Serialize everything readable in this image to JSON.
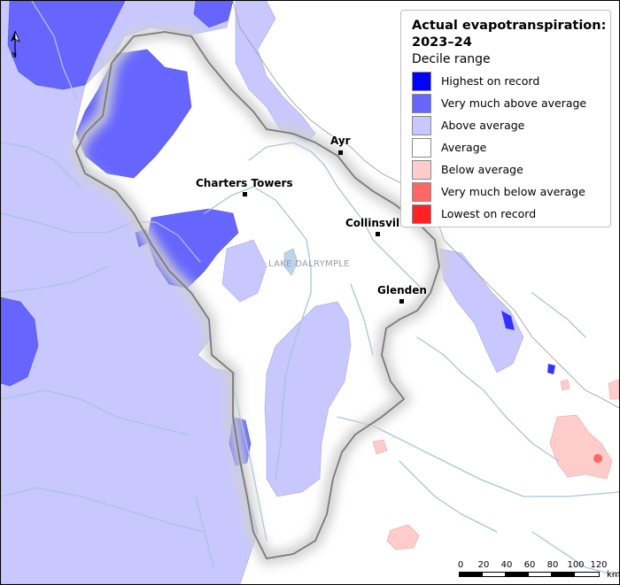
{
  "legend": {
    "title": "Actual evapotranspiration: 2023–24",
    "subtitle": "Decile range",
    "items": [
      {
        "label": "Highest on record",
        "color": "#0000ff"
      },
      {
        "label": "Very much above average",
        "color": "#6666ff"
      },
      {
        "label": "Above average",
        "color": "#c8c8ff"
      },
      {
        "label": "Average",
        "color": "#ffffff"
      },
      {
        "label": "Below average",
        "color": "#ffcccc"
      },
      {
        "label": "Very much below average",
        "color": "#ff6666"
      },
      {
        "label": "Lowest on record",
        "color": "#ff2222"
      }
    ]
  },
  "places": {
    "ayr": "Ayr",
    "charters_towers": "Charters Towers",
    "collinsville": "Collinsvil",
    "glenden": "Glenden",
    "lake": "LAKE DALRYMPLE"
  },
  "north_arrow": {
    "label": "N"
  },
  "scale": {
    "ticks": [
      "0",
      "20",
      "40",
      "60",
      "80",
      "100",
      "120"
    ],
    "unit": "km"
  },
  "colors": {
    "river": "#a8c4dc",
    "boundary": "#7a7a7a"
  }
}
